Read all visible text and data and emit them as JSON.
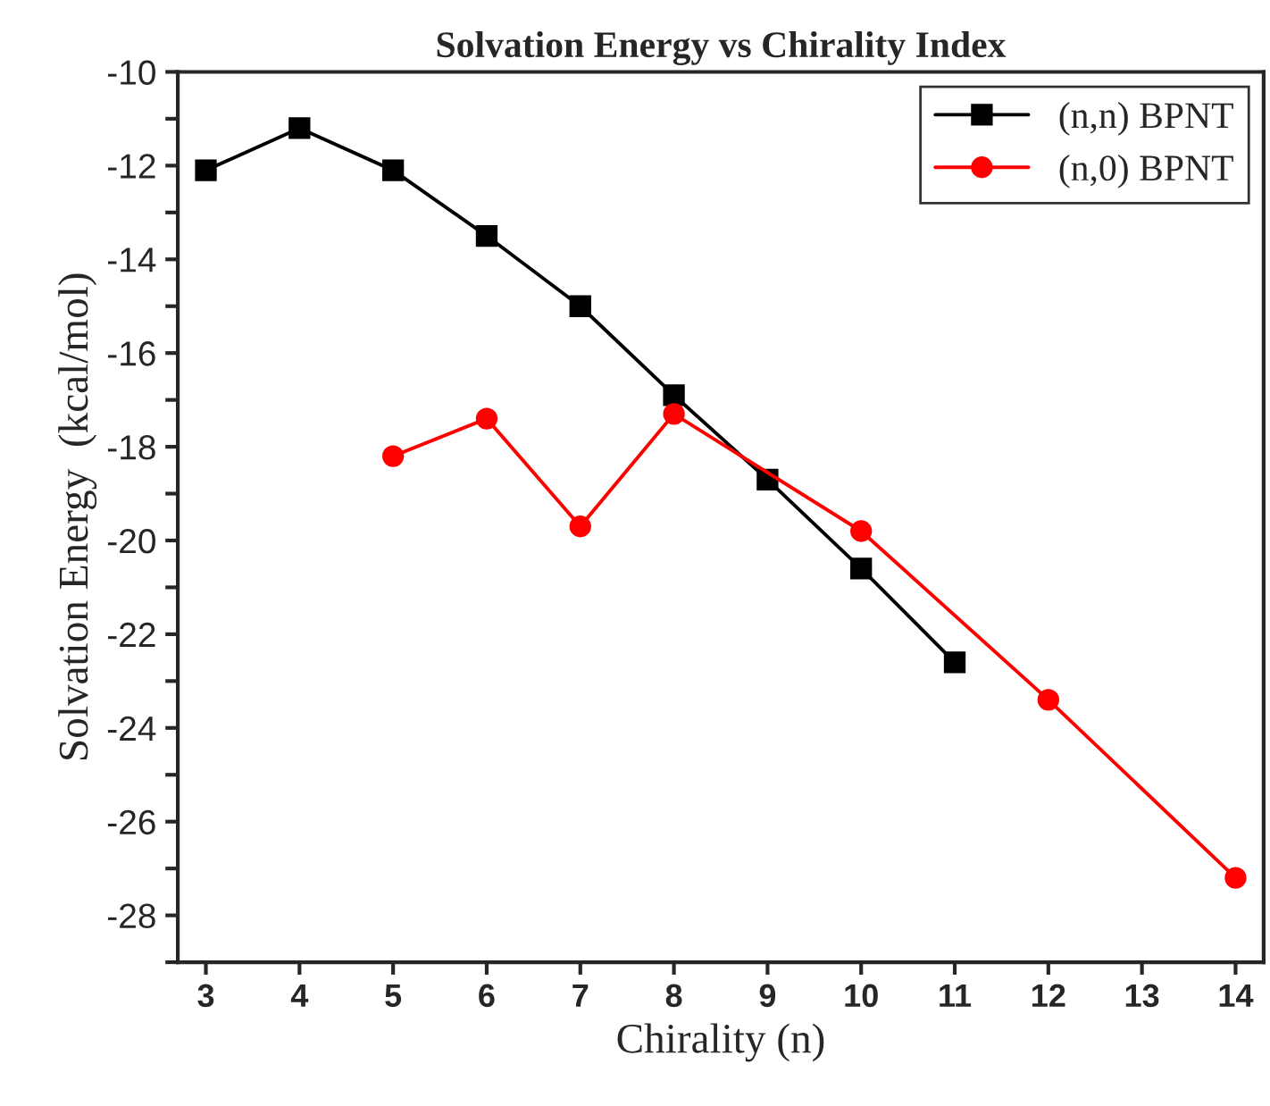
{
  "chart_data": {
    "type": "line",
    "title": "Solvation Energy vs Chirality Index",
    "xlabel": "Chirality (n)",
    "ylabel": "Solvation Energy  (kcal/mol)",
    "xlim": [
      2.7,
      14.3
    ],
    "xticks": [
      3,
      4,
      5,
      6,
      7,
      8,
      9,
      10,
      11,
      12,
      13,
      14
    ],
    "ylim": [
      -29,
      -10
    ],
    "yticks": [
      -10,
      {
        "value": -11,
        "label": null
      },
      -12,
      {
        "value": -13,
        "label": null
      },
      -14,
      {
        "value": -15,
        "label": null
      },
      -16,
      {
        "value": -17,
        "label": null
      },
      -18,
      {
        "value": -19,
        "label": null
      },
      -20,
      {
        "value": -21,
        "label": null
      },
      -22,
      {
        "value": -23,
        "label": null
      },
      -24,
      {
        "value": -25,
        "label": null
      },
      -26,
      {
        "value": -27,
        "label": null
      },
      -28,
      {
        "value": -29,
        "label": null
      }
    ],
    "grid": false,
    "legend": "top right",
    "series": [
      {
        "name": "(n,n) BPNT",
        "color": "#000000",
        "marker": "square",
        "x": [
          3,
          4,
          5,
          6,
          7,
          8,
          9,
          10,
          11
        ],
        "values": [
          -12.1,
          -11.2,
          -12.1,
          -13.5,
          -15.0,
          -16.9,
          -18.7,
          -20.6,
          -22.6
        ]
      },
      {
        "name": "(n,0) BPNT",
        "color": "#ff0000",
        "marker": "circle",
        "x": [
          5,
          6,
          7,
          8,
          10,
          12,
          14
        ],
        "values": [
          -18.2,
          -17.4,
          -19.7,
          -17.3,
          -19.8,
          -23.4,
          -27.2
        ]
      }
    ]
  }
}
